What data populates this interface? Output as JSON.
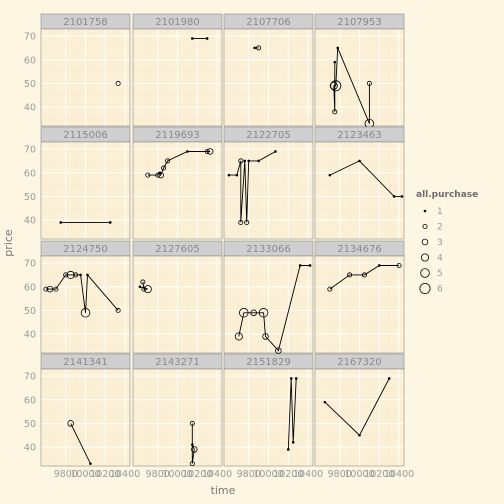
{
  "chart_data": {
    "type": "line",
    "facet": "wrap",
    "xlabel": "time",
    "ylabel": "price",
    "xlim": [
      9550,
      10450
    ],
    "ylim": [
      32,
      73
    ],
    "x_ticks": [
      9800,
      10000,
      10200,
      10400
    ],
    "x_tick_labels": [
      "9800",
      "10000",
      "10200",
      "10400"
    ],
    "y_ticks": [
      40,
      50,
      60,
      70
    ],
    "y_tick_labels": [
      "40",
      "50",
      "60",
      "70"
    ],
    "grid": true,
    "legend": {
      "title": "all.purchase",
      "position": "right",
      "sizes": [
        1,
        2,
        3,
        4,
        5,
        6
      ],
      "labels": [
        "1",
        "2",
        "3",
        "4",
        "5",
        "6"
      ]
    },
    "colors": {
      "background": "#fdf6e3",
      "panel": "#fbf0d6",
      "strip": "#cfcfcf",
      "grid_major": "#ffffff",
      "grid_minor": "#f6ead0",
      "line": "#000000"
    },
    "facets": [
      {
        "id": "2101758",
        "points": [
          [
            10330,
            50,
            2
          ]
        ]
      },
      {
        "id": "2101980",
        "points": [
          [
            10150,
            69,
            1
          ],
          [
            10300,
            69,
            1
          ]
        ]
      },
      {
        "id": "2107706",
        "points": [
          [
            9860,
            65,
            1
          ],
          [
            9900,
            65,
            2
          ]
        ]
      },
      {
        "id": "2107953",
        "points": [
          [
            9750,
            59,
            1
          ],
          [
            9750,
            38,
            2
          ],
          [
            9740,
            49,
            4
          ],
          [
            9760,
            49,
            6
          ],
          [
            9780,
            65,
            1
          ],
          [
            10100,
            33,
            5
          ],
          [
            10100,
            50,
            2
          ]
        ]
      },
      {
        "id": "2115006",
        "points": [
          [
            9750,
            39,
            1
          ],
          [
            10250,
            39,
            1
          ]
        ]
      },
      {
        "id": "2119693",
        "points": [
          [
            9700,
            59,
            2
          ],
          [
            9800,
            59,
            2
          ],
          [
            9820,
            60,
            1
          ],
          [
            9830,
            59,
            3
          ],
          [
            9860,
            62,
            2
          ],
          [
            9900,
            65,
            2
          ],
          [
            10100,
            69,
            1
          ],
          [
            10300,
            69,
            2
          ],
          [
            10330,
            69,
            3
          ]
        ]
      },
      {
        "id": "2122705",
        "points": [
          [
            9600,
            59,
            1
          ],
          [
            9680,
            59,
            1
          ],
          [
            9720,
            65,
            2
          ],
          [
            9720,
            39,
            2
          ],
          [
            9760,
            65,
            1
          ],
          [
            9780,
            39,
            2
          ],
          [
            9800,
            65,
            1
          ],
          [
            9900,
            65,
            1
          ],
          [
            10070,
            69,
            1
          ]
        ]
      },
      {
        "id": "2123463",
        "points": [
          [
            9700,
            59,
            1
          ],
          [
            10000,
            65,
            1
          ],
          [
            10350,
            50,
            1
          ],
          [
            10430,
            50,
            1
          ]
        ]
      },
      {
        "id": "2124750",
        "points": [
          [
            9600,
            59,
            2
          ],
          [
            9640,
            59,
            3
          ],
          [
            9700,
            59,
            2
          ],
          [
            9800,
            65,
            2
          ],
          [
            9850,
            65,
            4
          ],
          [
            9900,
            65,
            2
          ],
          [
            9950,
            65,
            1
          ],
          [
            10000,
            49,
            5
          ],
          [
            10020,
            65,
            1
          ],
          [
            10330,
            50,
            2
          ]
        ]
      },
      {
        "id": "2127605",
        "points": [
          [
            9650,
            62,
            2
          ],
          [
            9660,
            59,
            2
          ],
          [
            9700,
            59,
            4
          ],
          [
            9620,
            60,
            1
          ]
        ]
      },
      {
        "id": "2133066",
        "points": [
          [
            9700,
            39,
            4
          ],
          [
            9750,
            49,
            5
          ],
          [
            9850,
            49,
            3
          ],
          [
            9950,
            49,
            5
          ],
          [
            9970,
            39,
            3
          ],
          [
            10100,
            33,
            3
          ],
          [
            10320,
            69,
            1
          ],
          [
            10420,
            69,
            1
          ]
        ]
      },
      {
        "id": "2134676",
        "points": [
          [
            9700,
            59,
            2
          ],
          [
            9900,
            65,
            2
          ],
          [
            10050,
            65,
            2
          ],
          [
            10200,
            69,
            1
          ],
          [
            10400,
            69,
            2
          ]
        ]
      },
      {
        "id": "2141341",
        "points": [
          [
            9850,
            50,
            3
          ],
          [
            10050,
            33,
            1
          ]
        ]
      },
      {
        "id": "2143271",
        "points": [
          [
            10150,
            50,
            2
          ],
          [
            10150,
            33,
            2
          ],
          [
            10170,
            39,
            3
          ],
          [
            10150,
            41,
            1
          ]
        ]
      },
      {
        "id": "2151829",
        "points": [
          [
            10200,
            39,
            1
          ],
          [
            10230,
            69,
            1
          ],
          [
            10250,
            42,
            1
          ],
          [
            10280,
            69,
            1
          ]
        ]
      },
      {
        "id": "2167320",
        "points": [
          [
            9650,
            59,
            1
          ],
          [
            10000,
            45,
            1
          ],
          [
            10300,
            69,
            1
          ]
        ]
      }
    ]
  }
}
